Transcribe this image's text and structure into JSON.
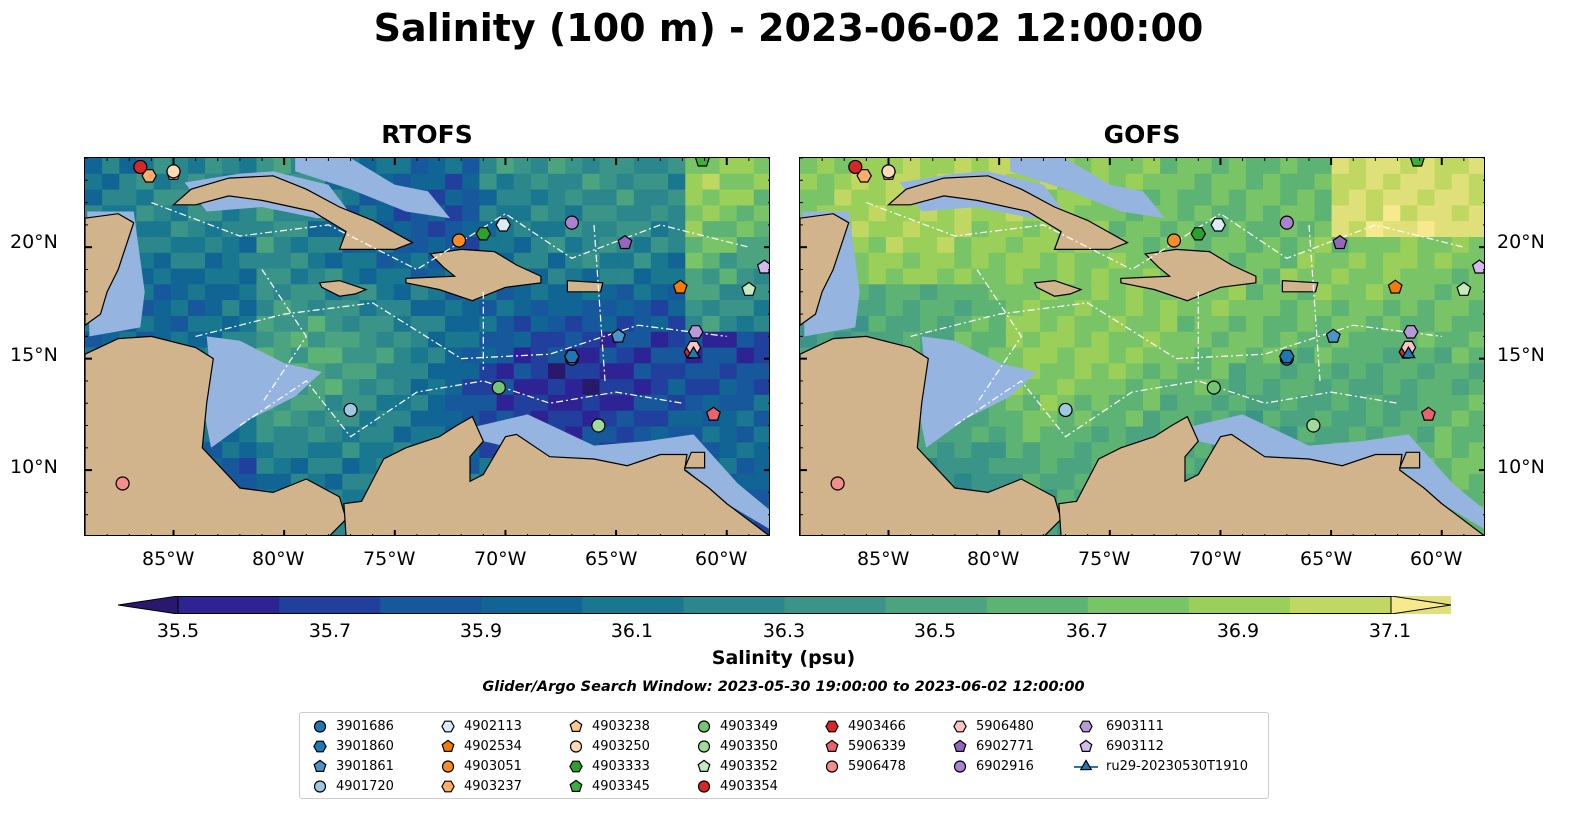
{
  "title": "Salinity (100 m) - 2023-06-02 12:00:00",
  "panels": [
    {
      "name": "RTOFS",
      "model": "rtofs"
    },
    {
      "name": "GOFS",
      "model": "gofs"
    }
  ],
  "chart_data": {
    "type": "heatmap",
    "title": "Salinity (100 m) - 2023-06-02 12:00:00",
    "subplots": [
      "RTOFS",
      "GOFS"
    ],
    "x_ticks": [
      "85°W",
      "80°W",
      "75°W",
      "70°W",
      "65°W",
      "60°W"
    ],
    "y_ticks": [
      "10°N",
      "15°N",
      "20°N"
    ],
    "lon_range": [
      -89,
      -58
    ],
    "lat_range": [
      7,
      24
    ],
    "colorbar": {
      "label": "Salinity (psu)",
      "range": [
        35.4,
        37.2
      ],
      "ticks": [
        "35.5",
        "35.7",
        "35.9",
        "36.1",
        "36.3",
        "36.5",
        "36.7",
        "36.9",
        "37.1"
      ],
      "extend": "both",
      "colormap": "haline"
    },
    "search_window": "Glider/Argo Search Window: 2023-05-30 19:00:00 to 2023-06-02 12:00:00",
    "floats": [
      {
        "id": "3901686",
        "marker": "circle",
        "color": "#1f77b4",
        "lon": -67,
        "lat": 15.0
      },
      {
        "id": "3901860",
        "marker": "hexagon",
        "color": "#1f77b4",
        "lon": -67,
        "lat": 15.1
      },
      {
        "id": "3901861",
        "marker": "pentagon",
        "color": "#4a94cb",
        "lon": -64.9,
        "lat": 16.0
      },
      {
        "id": "4901720",
        "marker": "circle",
        "color": "#9ecae1",
        "lon": -77.0,
        "lat": 12.7
      },
      {
        "id": "4902113",
        "marker": "hexagon",
        "color": "#dbeaf7",
        "lon": -70.1,
        "lat": 21.0
      },
      {
        "id": "4902534",
        "marker": "pentagon",
        "color": "#f57c00",
        "lon": -62.1,
        "lat": 18.2
      },
      {
        "id": "4903051",
        "marker": "circle",
        "color": "#fb8c25",
        "lon": -72.1,
        "lat": 20.3
      },
      {
        "id": "4903237",
        "marker": "hexagon",
        "color": "#fdae6b",
        "lon": -86.1,
        "lat": 23.2
      },
      {
        "id": "4903238",
        "marker": "pentagon",
        "color": "#fdc98f",
        "lon": -85.0,
        "lat": 23.3
      },
      {
        "id": "4903250",
        "marker": "circle",
        "color": "#fdd9b5",
        "lon": -85.0,
        "lat": 23.4
      },
      {
        "id": "4903333",
        "marker": "hexagon",
        "color": "#2ca02c",
        "lon": -71.0,
        "lat": 20.6
      },
      {
        "id": "4903345",
        "marker": "pentagon",
        "color": "#3fae3f",
        "lon": -61.1,
        "lat": 23.9
      },
      {
        "id": "4903349",
        "marker": "circle",
        "color": "#74c476",
        "lon": -70.3,
        "lat": 13.7
      },
      {
        "id": "4903350",
        "marker": "circle",
        "color": "#a1d99b",
        "lon": -65.8,
        "lat": 12.0
      },
      {
        "id": "4903352",
        "marker": "pentagon",
        "color": "#c7e9c0",
        "lon": -59.0,
        "lat": 18.1
      },
      {
        "id": "4903354",
        "marker": "circle",
        "color": "#d62728",
        "lon": -86.5,
        "lat": 23.6
      },
      {
        "id": "4903466",
        "marker": "hexagon",
        "color": "#d62728",
        "lon": -61.6,
        "lat": 15.3
      },
      {
        "id": "5906339",
        "marker": "pentagon",
        "color": "#e8636b",
        "lon": -60.6,
        "lat": 12.5
      },
      {
        "id": "5906478",
        "marker": "circle",
        "color": "#f28e8b",
        "lon": -87.3,
        "lat": 9.4
      },
      {
        "id": "5906480",
        "marker": "hexagon",
        "color": "#fbc4c4",
        "lon": -61.5,
        "lat": 15.5
      },
      {
        "id": "6902771",
        "marker": "pentagon",
        "color": "#9467bd",
        "lon": -64.6,
        "lat": 20.2
      },
      {
        "id": "6902916",
        "marker": "circle",
        "color": "#a983d1",
        "lon": -67.0,
        "lat": 21.1
      },
      {
        "id": "6903111",
        "marker": "hexagon",
        "color": "#b99ad8",
        "lon": -61.4,
        "lat": 16.2
      },
      {
        "id": "6903112",
        "marker": "pentagon",
        "color": "#d4b9ec",
        "lon": -58.3,
        "lat": 19.1
      },
      {
        "id": "ru29-20230530T1910",
        "marker": "triangle",
        "color": "#1f77b4",
        "lon": -61.5,
        "lat": 15.2
      }
    ]
  },
  "legend_labels": {
    "c0": [
      "3901686",
      "3901860",
      "3901861",
      "4901720"
    ],
    "c1": [
      "4902113",
      "4902534",
      "4903051",
      "4903237"
    ],
    "c2": [
      "4903238",
      "4903250",
      "4903333",
      "4903345"
    ],
    "c3": [
      "4903349",
      "4903350",
      "4903352",
      "4903354"
    ],
    "c4": [
      "4903466",
      "5906339",
      "5906478"
    ],
    "c5": [
      "5906480",
      "6902771",
      "6902916"
    ],
    "c6": [
      "6903111",
      "6903112",
      "ru29-20230530T1910"
    ]
  },
  "legend_markers": [
    [
      "circle",
      "#1f77b4"
    ],
    [
      "hexagon",
      "#1f77b4"
    ],
    [
      "pentagon",
      "#4a94cb"
    ],
    [
      "circle",
      "#9ecae1"
    ],
    [
      "hexagon",
      "#dbeaf7"
    ],
    [
      "pentagon",
      "#f57c00"
    ],
    [
      "circle",
      "#fb8c25"
    ],
    [
      "hexagon",
      "#fdae6b"
    ],
    [
      "pentagon",
      "#fdc98f"
    ],
    [
      "circle",
      "#fdd9b5"
    ],
    [
      "hexagon",
      "#2ca02c"
    ],
    [
      "pentagon",
      "#3fae3f"
    ],
    [
      "circle",
      "#74c476"
    ],
    [
      "circle",
      "#a1d99b"
    ],
    [
      "pentagon",
      "#c7e9c0"
    ],
    [
      "circle",
      "#d62728"
    ],
    [
      "hexagon",
      "#d62728"
    ],
    [
      "pentagon",
      "#e8636b"
    ],
    [
      "circle",
      "#f28e8b"
    ],
    [
      "hexagon",
      "#fbc4c4"
    ],
    [
      "pentagon",
      "#9467bd"
    ],
    [
      "circle",
      "#a983d1"
    ],
    [
      "hexagon",
      "#b99ad8"
    ],
    [
      "pentagon",
      "#d4b9ec"
    ],
    [
      "triangle",
      "#1f77b4"
    ]
  ],
  "colors": {
    "land": "#d2b48c",
    "shelf": "#95b4e0",
    "haline": [
      "#2a186c",
      "#2e2395",
      "#21409d",
      "#16589b",
      "#116594",
      "#1a7790",
      "#2b878c",
      "#3a9488",
      "#4ba37f",
      "#5db374",
      "#79c467",
      "#9ad05a",
      "#c0d762",
      "#e0e07a",
      "#f6e98e"
    ]
  }
}
